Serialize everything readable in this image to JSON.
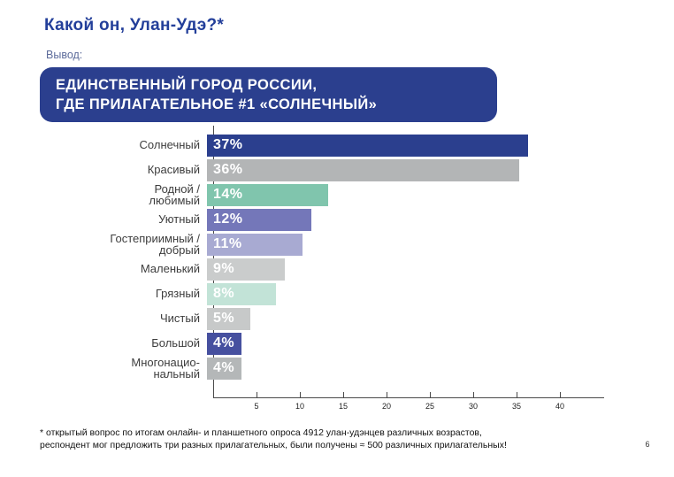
{
  "slide": {
    "title": "Какой он, Улан-Удэ?*",
    "conclusion_label": "Вывод:",
    "callout": {
      "line1": "ЕДИНСТВЕННЫЙ ГОРОД РОССИИ,",
      "line2": "ГДЕ ПРИЛАГАТЕЛЬНОЕ #1 «СОЛНЕЧНЫЙ»"
    },
    "footnote_line1": "* открытый вопрос по итогам онлайн- и планшетного опроса 4912 улан-удэнцев различных возрастов,",
    "footnote_line2": "респондент мог предложить три разных прилагательных, были получены ≈ 500 различных прилагательных!",
    "page_number": "6"
  },
  "colors": {
    "title": "#233f9a",
    "conclusion_label": "#5d6c9b",
    "callout_bg": "#2b3f8e",
    "callout_text": "#ffffff",
    "category_label": "#3d3d3d",
    "value_label": "#ffffff",
    "axis": "#4a4a4a",
    "footnote": "#111111"
  },
  "chart_data": {
    "type": "bar",
    "orientation": "horizontal",
    "title": "",
    "xlabel": "",
    "ylabel": "",
    "xlim": [
      0,
      45
    ],
    "xticks": [
      5,
      10,
      15,
      20,
      25,
      30,
      35,
      40
    ],
    "grid": false,
    "legend": false,
    "categories": [
      "Солнечный",
      "Красивый",
      "Родной /\nлюбимый",
      "Уютный",
      "Гостеприимный /\nдобрый",
      "Маленький",
      "Грязный",
      "Чистый",
      "Большой",
      "Многонацио-\nнальный"
    ],
    "values": [
      37,
      36,
      14,
      12,
      11,
      9,
      8,
      5,
      4,
      4
    ],
    "value_labels": [
      "37%",
      "36%",
      "14%",
      "12%",
      "11%",
      "9%",
      "8%",
      "5%",
      "4%",
      "4%"
    ],
    "bar_colors": [
      "#2b3f8e",
      "#b3b5b6",
      "#80c5ad",
      "#7477b9",
      "#a8aad2",
      "#cacccc",
      "#c2e3d7",
      "#c7c9c9",
      "#46509f",
      "#b4b7b8"
    ]
  }
}
